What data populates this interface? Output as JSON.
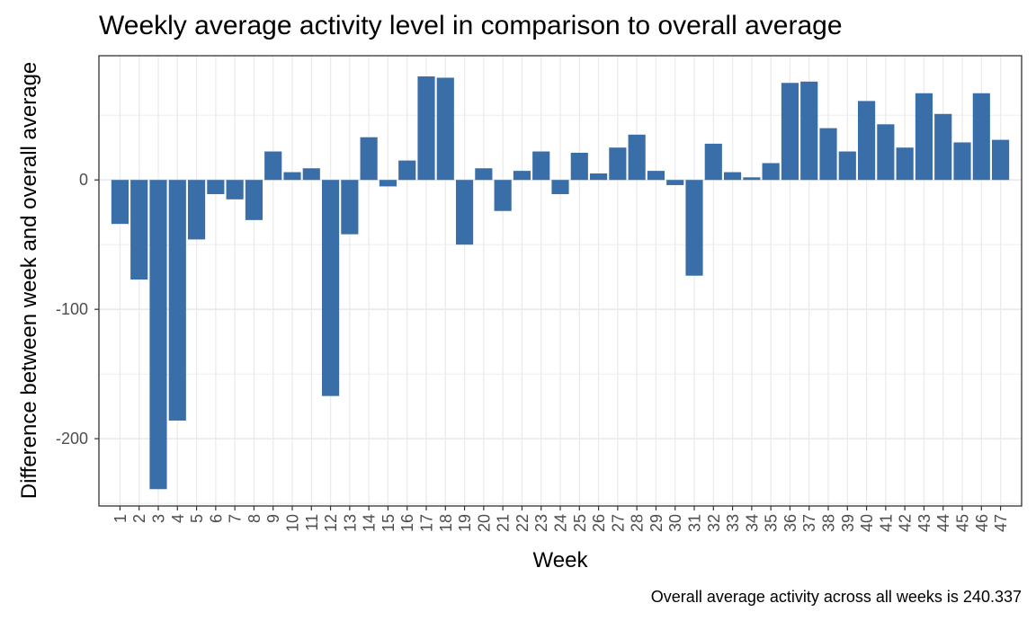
{
  "chart_data": {
    "type": "bar",
    "title": "Weekly average activity level in comparison to overall average",
    "xlabel": "Week",
    "ylabel": "Difference between week and overall average",
    "caption": "Overall average activity across all weeks is 240.337",
    "categories": [
      "1",
      "2",
      "3",
      "4",
      "5",
      "6",
      "7",
      "8",
      "9",
      "10",
      "11",
      "12",
      "13",
      "14",
      "15",
      "16",
      "17",
      "18",
      "19",
      "20",
      "21",
      "22",
      "23",
      "24",
      "25",
      "26",
      "27",
      "28",
      "29",
      "30",
      "31",
      "32",
      "33",
      "34",
      "35",
      "36",
      "37",
      "38",
      "39",
      "40",
      "41",
      "42",
      "43",
      "44",
      "45",
      "46",
      "47"
    ],
    "values": [
      -34,
      -77,
      -239,
      -186,
      -46,
      -11,
      -15,
      -31,
      22,
      6,
      9,
      -167,
      -42,
      33,
      -5,
      15,
      80,
      79,
      -50,
      9,
      -24,
      7,
      22,
      -11,
      21,
      5,
      25,
      35,
      7,
      -4,
      -74,
      28,
      6,
      2,
      13,
      75,
      76,
      40,
      22,
      61,
      43,
      25,
      67,
      51,
      29,
      67,
      31
    ],
    "ylim": [
      -252,
      96
    ],
    "yticks": [
      -200,
      -100,
      0
    ],
    "ytick_labels": [
      "-200",
      "-100",
      "0"
    ],
    "bar_color": "#3a6ea8",
    "grid": true,
    "legend": "none"
  }
}
